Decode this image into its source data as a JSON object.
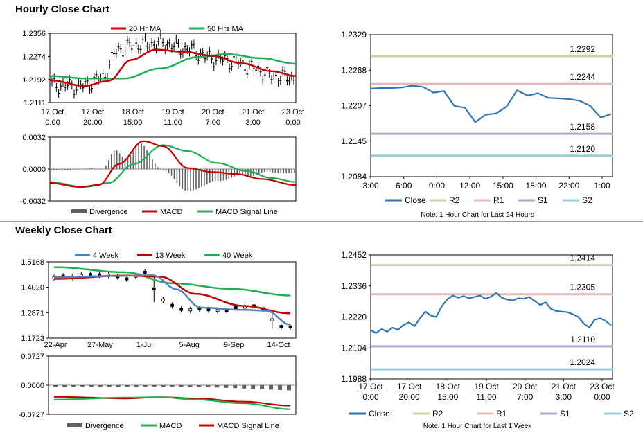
{
  "hourly": {
    "section_title": "Hourly Close Chart",
    "price_chart": {
      "type": "line",
      "legend": [
        "20 Hr MA",
        "50 Hrs MA"
      ],
      "y_ticks": [
        "1.2356",
        "1.2274",
        "1.2192",
        "1.2111"
      ],
      "ylim": [
        1.2111,
        1.2356
      ],
      "x_ticks": [
        [
          "17 Oct",
          "0:00"
        ],
        [
          "17 Oct",
          "20:00"
        ],
        [
          "18 Oct",
          "15:00"
        ],
        [
          "19 Oct",
          "11:00"
        ],
        [
          "20 Oct",
          "7:00"
        ],
        [
          "21 Oct",
          "3:00"
        ],
        [
          "23 Oct",
          "0:00"
        ]
      ],
      "colors": {
        "ma20": "#c00000",
        "ma50": "#1fae52",
        "candles": "#000000"
      }
    },
    "macd_chart": {
      "type": "line",
      "legend": [
        "Divergence",
        "MACD",
        "MACD Signal Line"
      ],
      "y_ticks": [
        "0.0032",
        "0.0000",
        "-0.0032"
      ],
      "ylim": [
        -0.0032,
        0.0032
      ],
      "colors": {
        "divergence": "#606060",
        "macd": "#c00000",
        "signal": "#1fae52"
      }
    },
    "close_chart": {
      "type": "line",
      "y_ticks": [
        "1.2329",
        "1.2268",
        "1.2207",
        "1.2145",
        "1.2084"
      ],
      "ylim": [
        1.2084,
        1.2329
      ],
      "x_ticks": [
        "3:00",
        "6:00",
        "9:00",
        "12:00",
        "15:00",
        "18:00",
        "22:00",
        "1:00"
      ],
      "levels": [
        {
          "name": "R2",
          "value": 1.2292,
          "label": "1.2292",
          "color": "#c3d69b"
        },
        {
          "name": "R1",
          "value": 1.2244,
          "label": "1.2244",
          "color": "#e6b9b8"
        },
        {
          "name": "S1",
          "value": 1.2158,
          "label": "1.2158",
          "color": "#b3a2c7"
        },
        {
          "name": "S2",
          "value": 1.212,
          "label": "1.2120",
          "color": "#93cddd"
        }
      ],
      "close_values": [
        1.2236,
        1.2237,
        1.2237,
        1.2238,
        1.2241,
        1.2239,
        1.2229,
        1.2232,
        1.2206,
        1.2203,
        1.2178,
        1.2191,
        1.2193,
        1.2205,
        1.2233,
        1.2224,
        1.2228,
        1.222,
        1.2219,
        1.2218,
        1.2215,
        1.2206,
        1.2186,
        1.2192
      ],
      "legend": [
        "Close",
        "R2",
        "R1",
        "S1",
        "S2"
      ],
      "close_color": "#2e75b6",
      "note": "Note: 1 Hour Chart for Last 24 Hours"
    }
  },
  "weekly": {
    "section_title": "Weekly Close Chart",
    "price_chart": {
      "type": "line",
      "legend": [
        "4 Week",
        "13 Week",
        "40 Week"
      ],
      "y_ticks": [
        "1.5168",
        "1.4020",
        "1.2871",
        "1.1723"
      ],
      "ylim": [
        1.1723,
        1.5168
      ],
      "x_ticks": [
        "22-Apr",
        "27-May",
        "1-Jul",
        "5-Aug",
        "9-Sep",
        "14-Oct"
      ],
      "colors": {
        "wk4": "#4f81bd",
        "wk13": "#c00000",
        "wk40": "#1fae52",
        "candles": "#000000"
      }
    },
    "macd_chart": {
      "type": "line",
      "legend": [
        "Divergence",
        "MACD",
        "MACD Signal Line"
      ],
      "y_ticks": [
        "0.0727",
        "0.0000",
        "-0.0727"
      ],
      "ylim": [
        -0.0727,
        0.0727
      ],
      "colors": {
        "divergence": "#606060",
        "macd": "#1fae52",
        "signal": "#c00000"
      }
    },
    "close_chart": {
      "type": "line",
      "y_ticks": [
        "1.2452",
        "1.2336",
        "1.2220",
        "1.2104",
        "1.1988"
      ],
      "ylim": [
        1.1988,
        1.2452
      ],
      "x_ticks": [
        [
          "17 Oct",
          "0:00"
        ],
        [
          "17 Oct",
          "20:00"
        ],
        [
          "18 Oct",
          "15:00"
        ],
        [
          "19 Oct",
          "11:00"
        ],
        [
          "20 Oct",
          "7:00"
        ],
        [
          "21 Oct",
          "3:00"
        ],
        [
          "23 Oct",
          "0:00"
        ]
      ],
      "levels": [
        {
          "name": "R2",
          "value": 1.2414,
          "label": "1.2414",
          "color": "#c3d69b"
        },
        {
          "name": "R1",
          "value": 1.2305,
          "label": "1.2305",
          "color": "#e6b9b8"
        },
        {
          "name": "S1",
          "value": 1.211,
          "label": "1.2110",
          "color": "#b3a2c7"
        },
        {
          "name": "S2",
          "value": 1.2024,
          "label": "1.2024",
          "color": "#93cddd"
        }
      ],
      "close_values": [
        1.217,
        1.216,
        1.2175,
        1.2165,
        1.218,
        1.2172,
        1.219,
        1.22,
        1.2185,
        1.2215,
        1.224,
        1.2225,
        1.222,
        1.226,
        1.2285,
        1.23,
        1.2292,
        1.2298,
        1.229,
        1.2295,
        1.23,
        1.2288,
        1.2296,
        1.231,
        1.2292,
        1.2285,
        1.2282,
        1.229,
        1.2288,
        1.2295,
        1.228,
        1.2265,
        1.2275,
        1.225,
        1.2242,
        1.224,
        1.2238,
        1.223,
        1.222,
        1.2195,
        1.218,
        1.221,
        1.2215,
        1.2205,
        1.2188
      ],
      "legend": [
        "Close",
        "R2",
        "R1",
        "S1",
        "S2"
      ],
      "close_color": "#2e75b6",
      "note": "Note: 1 Hour Chart for Last 1 Week"
    }
  }
}
